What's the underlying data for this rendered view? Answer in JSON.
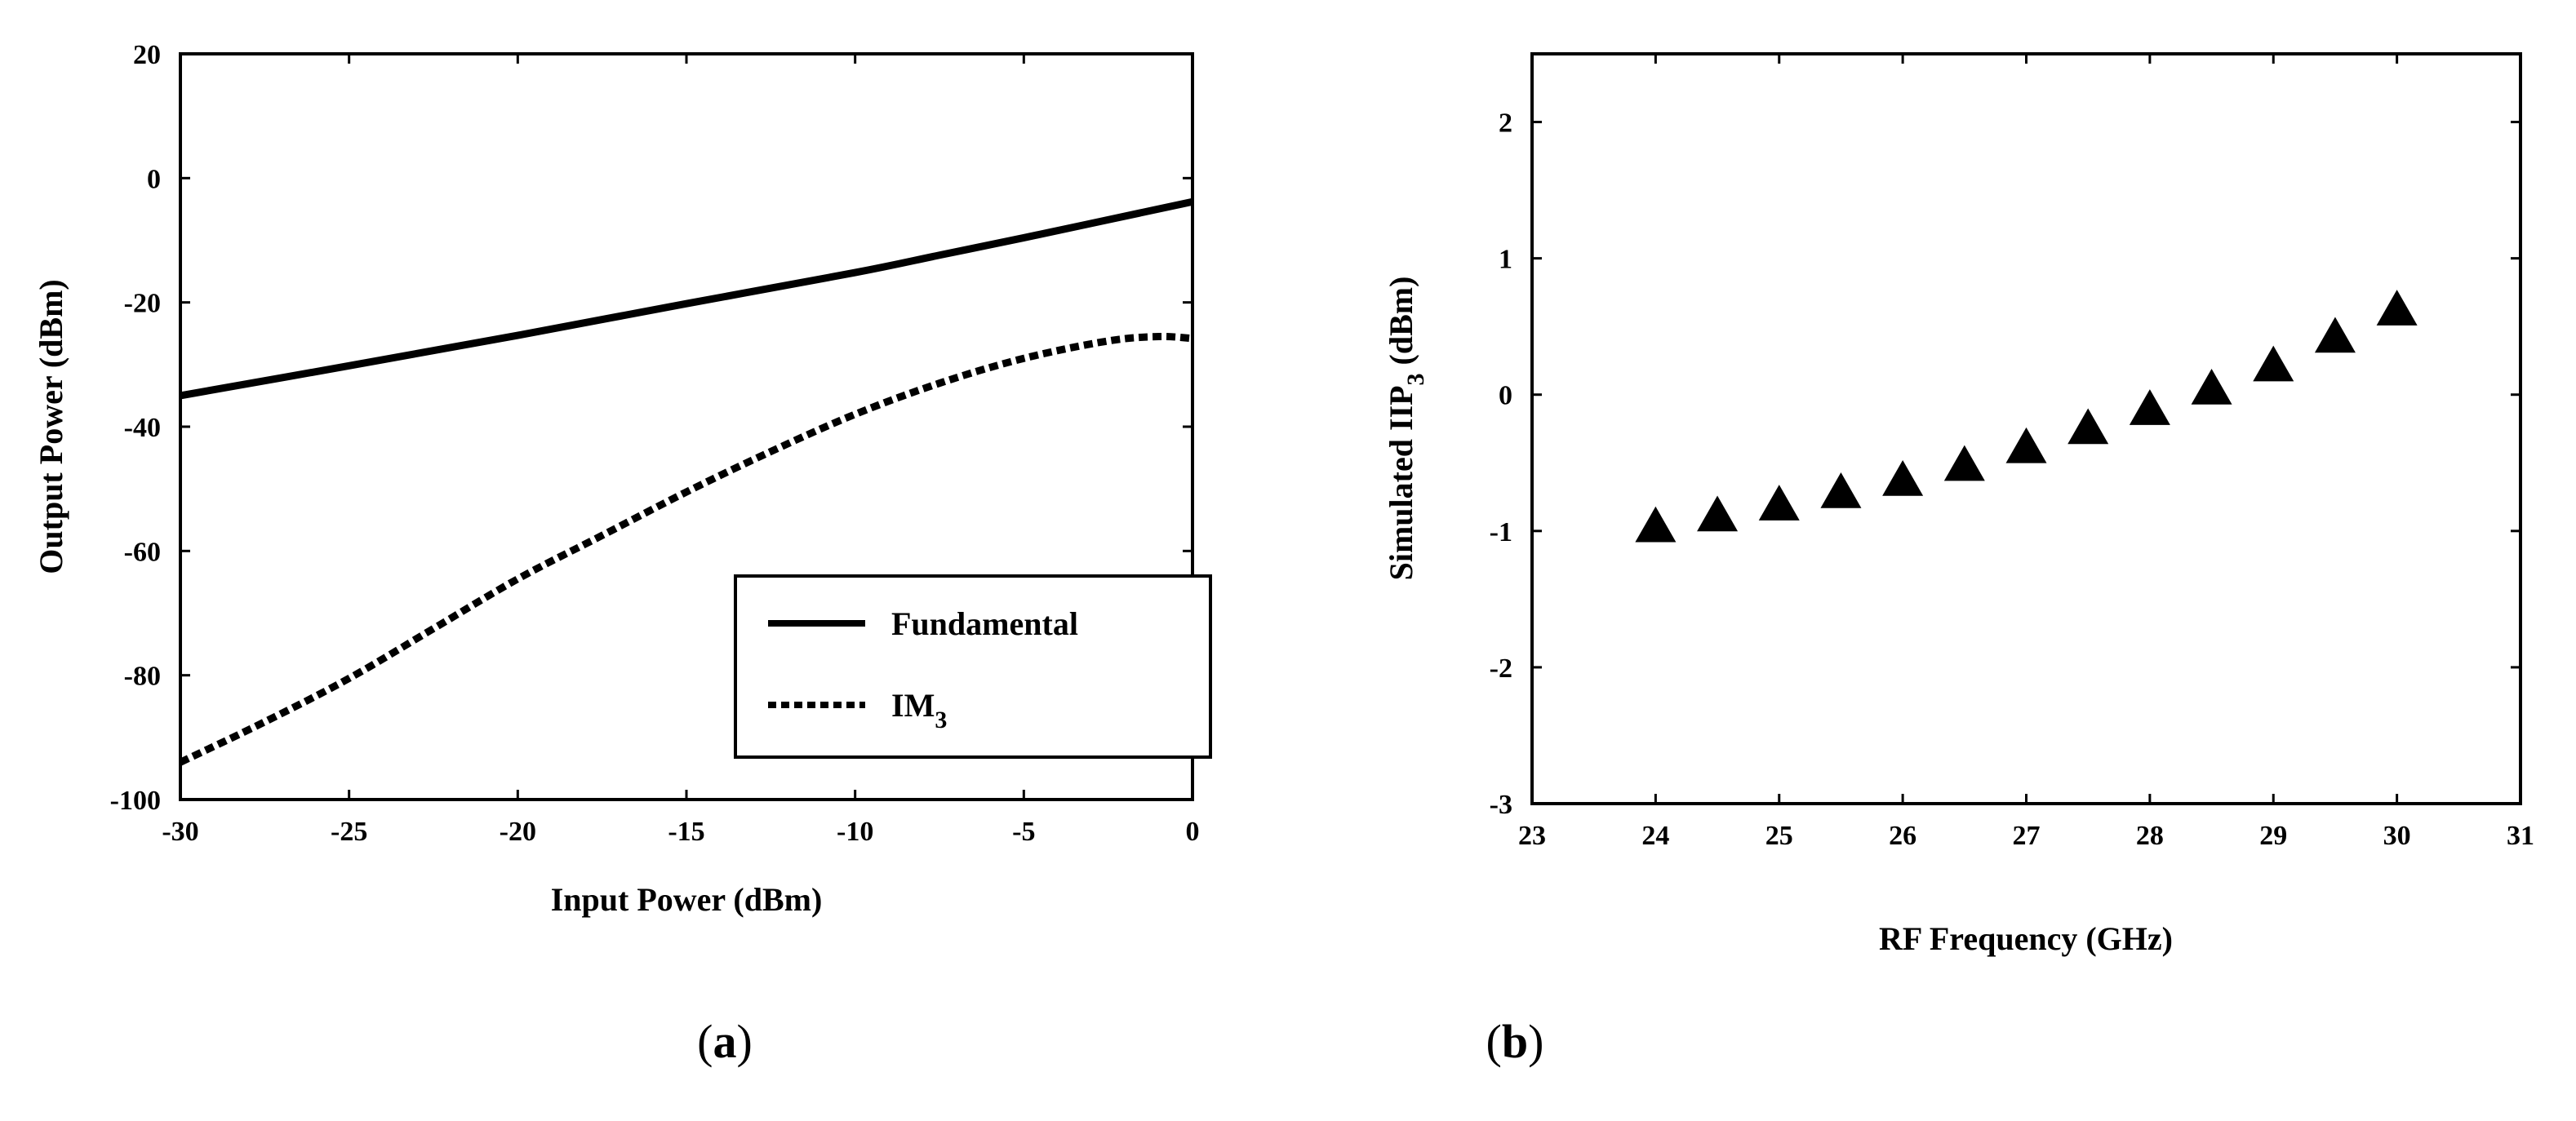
{
  "chart_data": [
    {
      "type": "line",
      "panel_label": "a",
      "xlabel": "Input Power (dBm)",
      "ylabel": "Output Power (dBm)",
      "xlim": [
        -30,
        0
      ],
      "ylim": [
        -100,
        20
      ],
      "xticks": [
        -30,
        -25,
        -20,
        -15,
        -10,
        -5,
        0
      ],
      "yticks": [
        20,
        0,
        -20,
        -40,
        -60,
        -80,
        -100
      ],
      "xtick_labels": [
        "-30",
        "-25",
        "-20",
        "-15",
        "-10",
        "-5",
        "0"
      ],
      "ytick_labels": [
        "20",
        "0",
        "-20",
        "-40",
        "-60",
        "-80",
        "-100"
      ],
      "grid": false,
      "legend_position": "bottom-right",
      "series": [
        {
          "name": "Fundamental",
          "style": "solid",
          "x": [
            -30,
            -25,
            -20,
            -15,
            -10,
            -7.5,
            -5,
            -2.5,
            0
          ],
          "y": [
            -35,
            -30.2,
            -25.3,
            -20.2,
            -15.2,
            -12.4,
            -9.6,
            -6.7,
            -3.8
          ]
        },
        {
          "name": "IM",
          "name_subscript": "3",
          "style": "dotted",
          "x": [
            -30,
            -27.5,
            -25,
            -22.5,
            -20,
            -17.5,
            -15,
            -12.5,
            -10,
            -7.5,
            -5,
            -2.5,
            -1,
            0
          ],
          "y": [
            -94,
            -87.5,
            -80.5,
            -72.5,
            -64.5,
            -57.5,
            -50.5,
            -44,
            -38,
            -33,
            -29,
            -26.2,
            -25.5,
            -25.8
          ]
        }
      ]
    },
    {
      "type": "scatter",
      "panel_label": "b",
      "xlabel": "RF Frequency (GHz)",
      "ylabel_prefix": "Simulated IIP",
      "ylabel_subscript": "3",
      "ylabel_suffix": " (dBm)",
      "xlim": [
        23,
        31
      ],
      "ylim": [
        -3,
        2.5
      ],
      "xticks": [
        23,
        24,
        25,
        26,
        27,
        28,
        29,
        30,
        31
      ],
      "yticks": [
        2,
        1,
        0,
        -1,
        -2,
        -3
      ],
      "xtick_labels": [
        "23",
        "24",
        "25",
        "26",
        "27",
        "28",
        "29",
        "30",
        "31"
      ],
      "ytick_labels": [
        "2",
        "1",
        "0",
        "-1",
        "-2",
        "-3"
      ],
      "grid": false,
      "marker": "triangle",
      "x": [
        24,
        24.5,
        25,
        25.5,
        26,
        26.5,
        27,
        27.5,
        28,
        28.5,
        29,
        29.5,
        30
      ],
      "y": [
        -0.97,
        -0.89,
        -0.81,
        -0.72,
        -0.63,
        -0.52,
        -0.39,
        -0.25,
        -0.11,
        0.04,
        0.21,
        0.42,
        0.62
      ]
    }
  ]
}
